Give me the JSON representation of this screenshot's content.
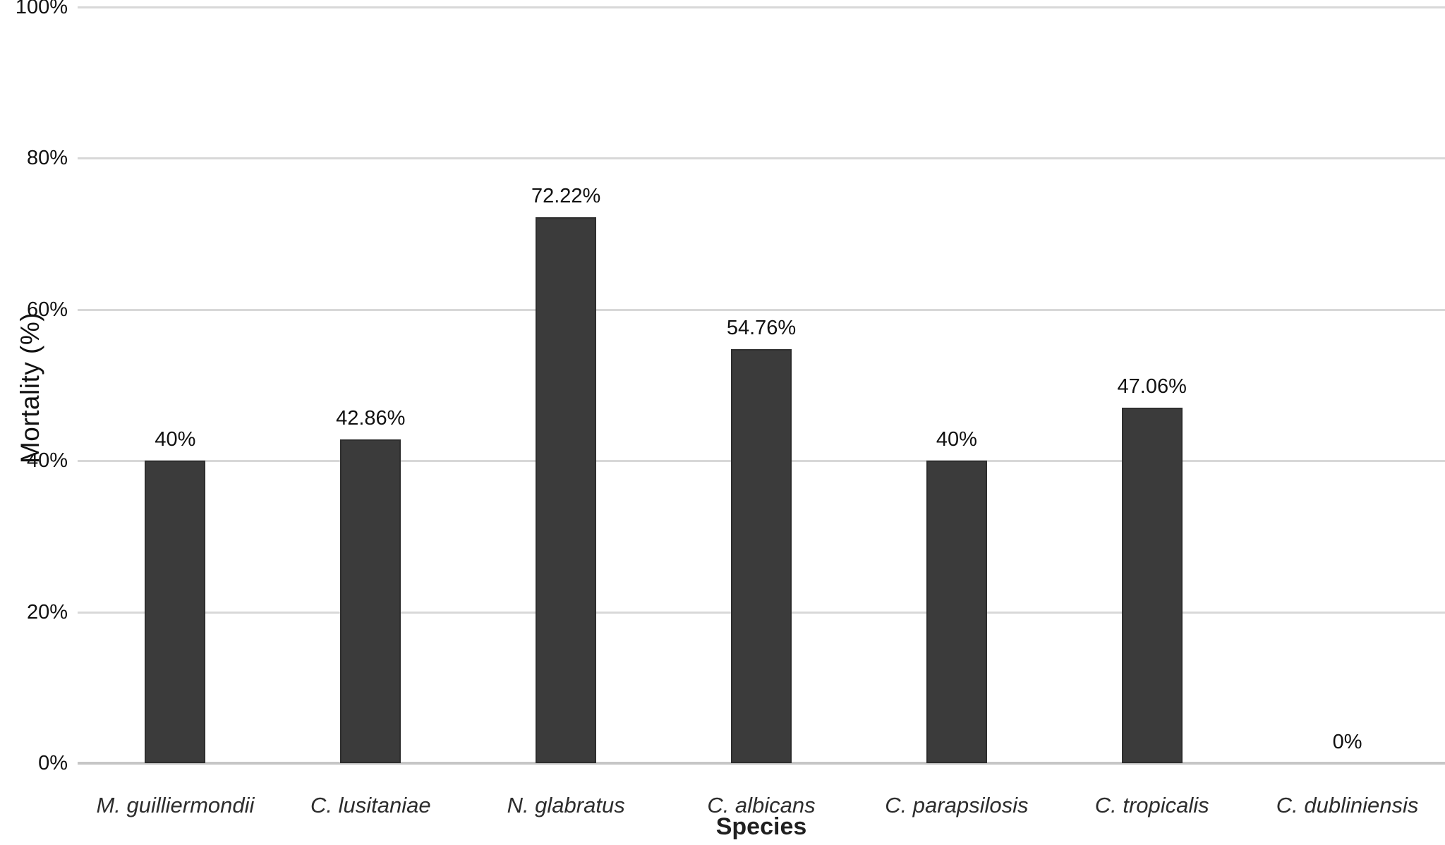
{
  "chart_data": {
    "type": "bar",
    "title": "",
    "xlabel": "Species",
    "ylabel": "Mortality (%)",
    "categories": [
      "M. guilliermondii",
      "C. lusitaniae",
      "N. glabratus",
      "C. albicans",
      "C. parapsilosis",
      "C. tropicalis",
      "C. dubliniensis"
    ],
    "values": [
      40,
      42.86,
      72.22,
      54.76,
      40,
      47.06,
      0
    ],
    "value_labels": [
      "40%",
      "42.86%",
      "72.22%",
      "54.76%",
      "40%",
      "47.06%",
      "0%"
    ],
    "ylim": [
      0,
      100
    ],
    "yticks": [
      {
        "value": 0,
        "label": "0%"
      },
      {
        "value": 20,
        "label": "20%"
      },
      {
        "value": 40,
        "label": "40%"
      },
      {
        "value": 60,
        "label": "60%"
      },
      {
        "value": 80,
        "label": "80%"
      },
      {
        "value": 100,
        "label": "100%"
      }
    ],
    "grid": true,
    "legend_position": "none",
    "category_style": "italic",
    "colors": {
      "bar_fill": "#3b3b3b",
      "bar_border": "#2e2e2e",
      "gridline": "#d8d8d8",
      "axis_line": "#c6c6c6",
      "tick_text": "#111111",
      "category_text": "#2d2d2d"
    }
  }
}
